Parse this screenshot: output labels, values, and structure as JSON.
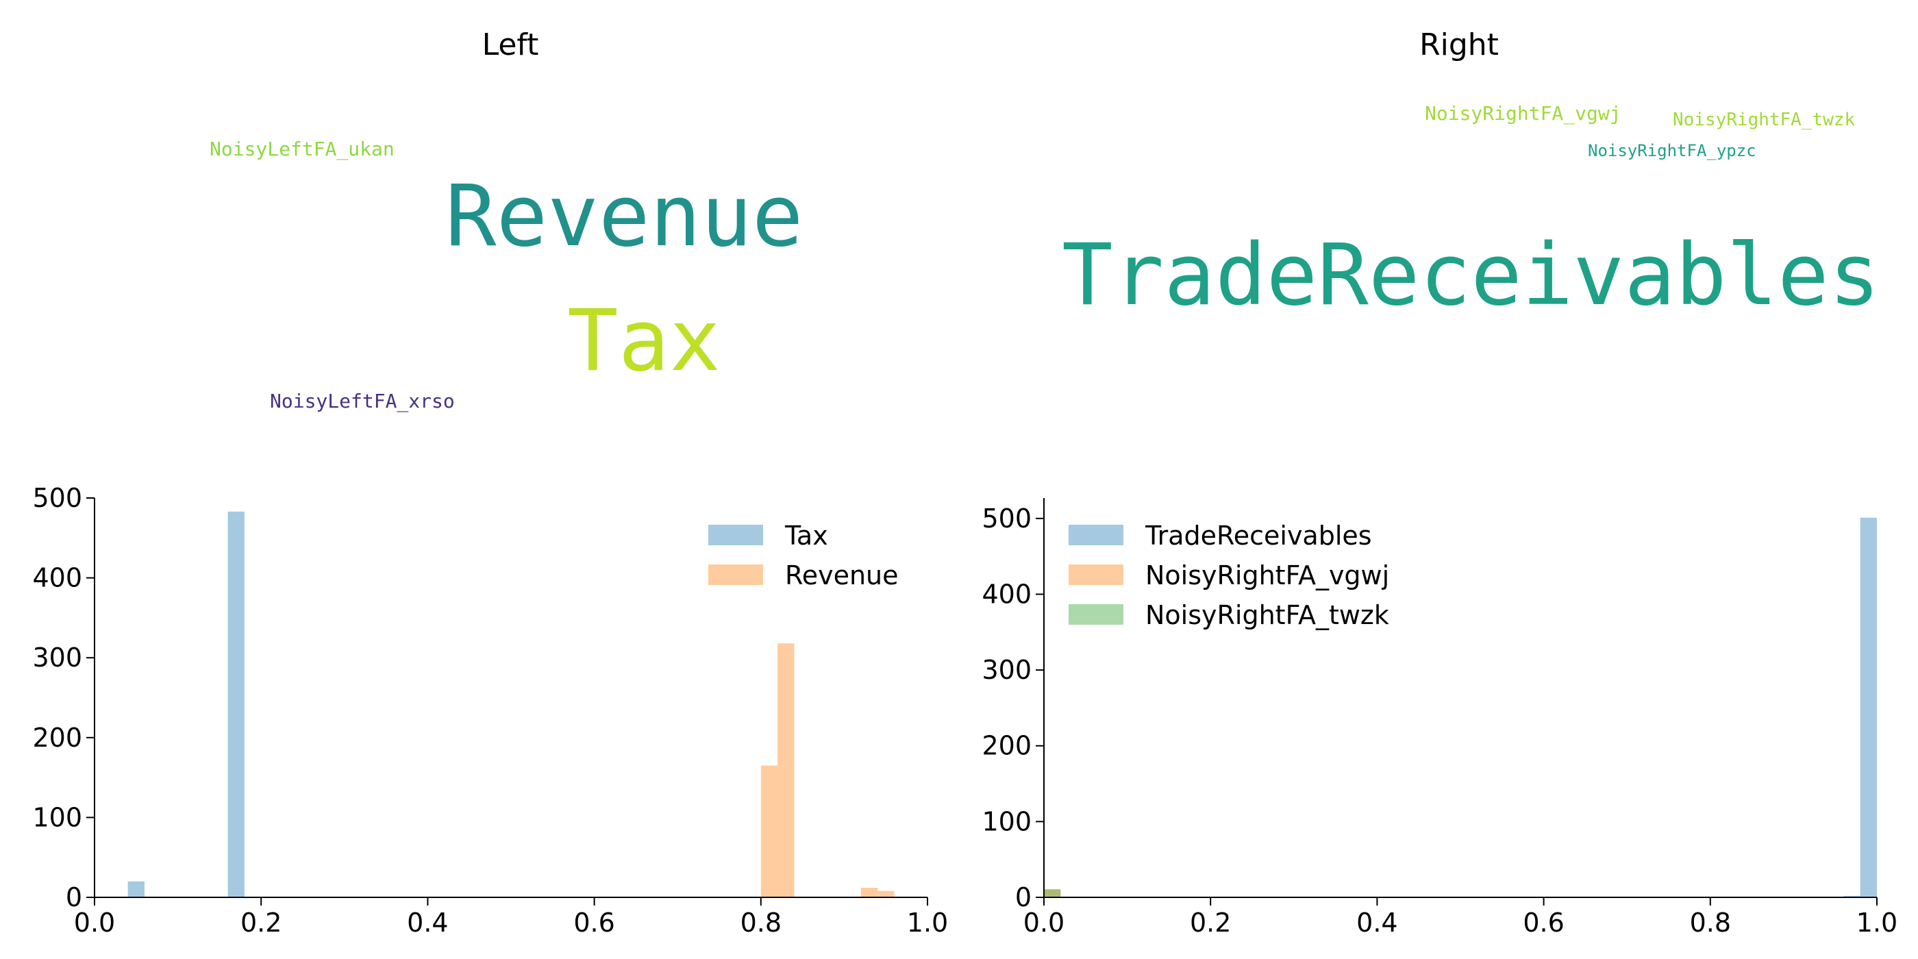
{
  "titles": {
    "left": "Left",
    "right": "Right"
  },
  "wordclouds": {
    "left": [
      {
        "text": "NoisyLeftFA_ukan",
        "color": "#8fd744"
      },
      {
        "text": "Revenue",
        "color": "#21918c"
      },
      {
        "text": "Tax",
        "color": "#bddf26"
      },
      {
        "text": "NoisyLeftFA_xrso",
        "color": "#46327e"
      }
    ],
    "right": [
      {
        "text": "NoisyRightFA_vgwj",
        "color": "#a0da39"
      },
      {
        "text": "NoisyRightFA_twzk",
        "color": "#a0da39"
      },
      {
        "text": "NoisyRightFA_ypzc",
        "color": "#1fa187"
      },
      {
        "text": "TradeReceivables",
        "color": "#1fa187"
      }
    ]
  },
  "chart_data": [
    {
      "type": "bar",
      "xlim": [
        0,
        1
      ],
      "ylim": [
        0,
        500
      ],
      "xticks": [
        "0.0",
        "0.2",
        "0.4",
        "0.6",
        "0.8",
        "1.0"
      ],
      "yticks": [
        "0",
        "100",
        "200",
        "300",
        "400",
        "500"
      ],
      "legend_position": "top-right",
      "series": [
        {
          "name": "Tax",
          "color": "#1f77b4",
          "bins": [
            {
              "x0": 0.04,
              "x1": 0.06,
              "value": 20
            },
            {
              "x0": 0.16,
              "x1": 0.18,
              "value": 483
            }
          ]
        },
        {
          "name": "Revenue",
          "color": "#ff7f0e",
          "bins": [
            {
              "x0": 0.8,
              "x1": 0.82,
              "value": 165
            },
            {
              "x0": 0.82,
              "x1": 0.84,
              "value": 318
            },
            {
              "x0": 0.92,
              "x1": 0.94,
              "value": 12
            },
            {
              "x0": 0.94,
              "x1": 0.96,
              "value": 8
            }
          ]
        }
      ]
    },
    {
      "type": "bar",
      "xlim": [
        0,
        1
      ],
      "ylim": [
        0,
        527
      ],
      "xticks": [
        "0.0",
        "0.2",
        "0.4",
        "0.6",
        "0.8",
        "1.0"
      ],
      "yticks": [
        "0",
        "100",
        "200",
        "300",
        "400",
        "500"
      ],
      "legend_position": "top-left",
      "series": [
        {
          "name": "TradeReceivables",
          "color": "#1f77b4",
          "bins": [
            {
              "x0": 0.96,
              "x1": 0.98,
              "value": 2
            },
            {
              "x0": 0.98,
              "x1": 1.0,
              "value": 501
            }
          ]
        },
        {
          "name": "NoisyRightFA_vgwj",
          "color": "#ff7f0e",
          "bins": [
            {
              "x0": 0.0,
              "x1": 0.02,
              "value": 10
            }
          ]
        },
        {
          "name": "NoisyRightFA_twzk",
          "color": "#2ca02c",
          "bins": [
            {
              "x0": 0.0,
              "x1": 0.02,
              "value": 11
            }
          ]
        }
      ]
    }
  ]
}
